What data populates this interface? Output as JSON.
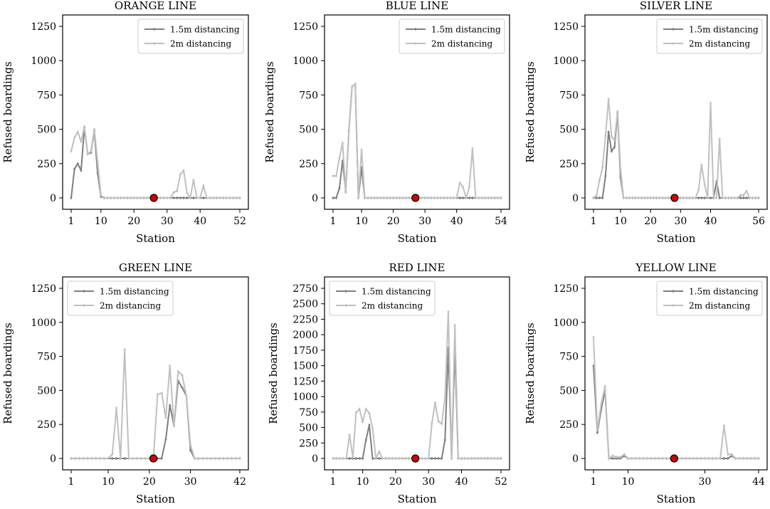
{
  "figure": {
    "colors": {
      "s15": "#7f7f7f",
      "s2": "#c0c0c0",
      "marker": "#d40000",
      "axis": "#000000"
    },
    "legend_placement": "upper-right"
  },
  "chart_data": [
    {
      "type": "line",
      "title": "ORANGE LINE",
      "xlabel": "Station",
      "ylabel": "Refused boardings",
      "ylim": [
        0,
        1250
      ],
      "yticks": [
        0,
        250,
        500,
        750,
        1000,
        1250
      ],
      "xlim": [
        1,
        52
      ],
      "xticks": [
        1,
        10,
        20,
        30,
        40,
        52
      ],
      "grid": false,
      "legend": "upper-right",
      "marker_station": 26,
      "series": [
        {
          "name": "1.5m distancing",
          "color": "#7f7f7f",
          "values": [
            0,
            210,
            250,
            200,
            510,
            320,
            330,
            490,
            180,
            10,
            0,
            0,
            0,
            0,
            0,
            0,
            0,
            0,
            0,
            0,
            0,
            0,
            0,
            0,
            0,
            0,
            0,
            0,
            0,
            0,
            0,
            0,
            0,
            0,
            0,
            0,
            0,
            0,
            0,
            0,
            0,
            0,
            0,
            0,
            0,
            0,
            0,
            0,
            0,
            0,
            0,
            0
          ]
        },
        {
          "name": "2m distancing",
          "color": "#c0c0c0",
          "values": [
            340,
            440,
            480,
            410,
            520,
            320,
            340,
            500,
            260,
            20,
            0,
            0,
            0,
            0,
            0,
            0,
            0,
            0,
            0,
            0,
            0,
            0,
            0,
            0,
            0,
            0,
            0,
            0,
            0,
            0,
            0,
            40,
            50,
            170,
            200,
            40,
            0,
            130,
            0,
            0,
            90,
            0,
            0,
            0,
            0,
            0,
            0,
            0,
            0,
            0,
            0,
            0
          ]
        }
      ]
    },
    {
      "type": "line",
      "title": "BLUE LINE",
      "xlabel": "Station",
      "ylabel": "Refused boardings",
      "ylim": [
        0,
        1250
      ],
      "yticks": [
        0,
        250,
        500,
        750,
        1000,
        1250
      ],
      "xlim": [
        1,
        54
      ],
      "xticks": [
        1,
        10,
        20,
        30,
        40,
        54
      ],
      "grid": false,
      "legend": "upper-right",
      "marker_station": 27,
      "series": [
        {
          "name": "1.5m distancing",
          "color": "#7f7f7f",
          "values": [
            0,
            0,
            70,
            270,
            50,
            490,
            810,
            830,
            0,
            220,
            0,
            0,
            0,
            0,
            0,
            0,
            0,
            0,
            0,
            0,
            0,
            0,
            0,
            0,
            0,
            0,
            0,
            0,
            0,
            0,
            0,
            0,
            0,
            0,
            0,
            0,
            0,
            0,
            0,
            0,
            0,
            0,
            0,
            0,
            0,
            0,
            0,
            0,
            0,
            0,
            0,
            0,
            0,
            0
          ]
        },
        {
          "name": "2m distancing",
          "color": "#c0c0c0",
          "values": [
            160,
            160,
            290,
            400,
            40,
            490,
            810,
            830,
            0,
            350,
            0,
            0,
            0,
            0,
            0,
            0,
            0,
            0,
            0,
            0,
            0,
            0,
            0,
            0,
            0,
            0,
            0,
            0,
            0,
            0,
            0,
            0,
            0,
            0,
            0,
            0,
            0,
            0,
            0,
            0,
            110,
            80,
            0,
            80,
            360,
            0,
            0,
            0,
            0,
            0,
            0,
            0,
            0,
            0
          ]
        }
      ]
    },
    {
      "type": "line",
      "title": "SILVER LINE",
      "xlabel": "Station",
      "ylabel": "Refused boardings",
      "ylim": [
        0,
        1250
      ],
      "yticks": [
        0,
        250,
        500,
        750,
        1000,
        1250
      ],
      "xlim": [
        1,
        56
      ],
      "xticks": [
        1,
        10,
        20,
        30,
        40,
        56
      ],
      "grid": false,
      "legend": "upper-right",
      "marker_station": 28,
      "series": [
        {
          "name": "1.5m distancing",
          "color": "#7f7f7f",
          "values": [
            0,
            0,
            0,
            0,
            160,
            480,
            340,
            370,
            620,
            150,
            0,
            0,
            0,
            0,
            0,
            0,
            0,
            0,
            0,
            0,
            0,
            0,
            0,
            0,
            0,
            0,
            0,
            0,
            0,
            0,
            0,
            0,
            0,
            0,
            0,
            0,
            0,
            0,
            0,
            0,
            0,
            120,
            0,
            0,
            0,
            0,
            0,
            0,
            0,
            0,
            0,
            0,
            0,
            0,
            0,
            0
          ]
        },
        {
          "name": "2m distancing",
          "color": "#c0c0c0",
          "values": [
            0,
            20,
            130,
            220,
            450,
            720,
            450,
            420,
            630,
            210,
            0,
            0,
            0,
            0,
            0,
            0,
            0,
            0,
            0,
            0,
            0,
            0,
            0,
            0,
            0,
            0,
            0,
            0,
            0,
            0,
            0,
            0,
            0,
            0,
            0,
            60,
            240,
            100,
            0,
            690,
            0,
            0,
            430,
            0,
            0,
            0,
            0,
            0,
            0,
            20,
            20,
            50,
            0,
            0,
            0,
            0
          ]
        }
      ]
    },
    {
      "type": "line",
      "title": "GREEN LINE",
      "xlabel": "Station",
      "ylabel": "Refused boardings",
      "ylim": [
        0,
        1250
      ],
      "yticks": [
        0,
        250,
        500,
        750,
        1000,
        1250
      ],
      "xlim": [
        1,
        42
      ],
      "xticks": [
        1,
        10,
        20,
        30,
        42
      ],
      "grid": false,
      "legend": "upper-left",
      "marker_station": 21,
      "series": [
        {
          "name": "1.5m distancing",
          "color": "#7f7f7f",
          "values": [
            0,
            0,
            0,
            0,
            0,
            0,
            0,
            0,
            0,
            0,
            0,
            0,
            0,
            0,
            0,
            0,
            0,
            0,
            0,
            0,
            0,
            0,
            0,
            140,
            390,
            240,
            570,
            520,
            460,
            60,
            0,
            0,
            0,
            0,
            0,
            0,
            0,
            0,
            0,
            0,
            0,
            0
          ]
        },
        {
          "name": "2m distancing",
          "color": "#c0c0c0",
          "values": [
            0,
            0,
            0,
            0,
            0,
            0,
            0,
            0,
            0,
            0,
            30,
            370,
            0,
            800,
            0,
            0,
            0,
            0,
            0,
            0,
            0,
            470,
            480,
            300,
            680,
            240,
            640,
            610,
            460,
            100,
            0,
            0,
            0,
            0,
            0,
            0,
            0,
            0,
            0,
            0,
            0,
            0
          ]
        }
      ]
    },
    {
      "type": "line",
      "title": "RED LINE",
      "xlabel": "Station",
      "ylabel": "Refused boardings",
      "ylim": [
        0,
        2750
      ],
      "yticks": [
        0,
        250,
        500,
        750,
        1000,
        1250,
        1500,
        1750,
        2000,
        2250,
        2500,
        2750
      ],
      "xlim": [
        1,
        52
      ],
      "xticks": [
        1,
        10,
        20,
        30,
        40,
        52
      ],
      "grid": false,
      "legend": "upper-left",
      "marker_station": 26,
      "series": [
        {
          "name": "1.5m distancing",
          "color": "#7f7f7f",
          "values": [
            0,
            0,
            0,
            0,
            0,
            0,
            0,
            0,
            0,
            0,
            300,
            540,
            0,
            0,
            0,
            0,
            0,
            0,
            0,
            0,
            0,
            0,
            0,
            0,
            0,
            0,
            0,
            0,
            0,
            0,
            0,
            0,
            0,
            0,
            300,
            1780,
            0,
            1780,
            0,
            0,
            0,
            0,
            0,
            0,
            0,
            0,
            0,
            0,
            0,
            0,
            0,
            0
          ]
        },
        {
          "name": "2m distancing",
          "color": "#c0c0c0",
          "values": [
            0,
            0,
            0,
            0,
            0,
            380,
            20,
            740,
            800,
            590,
            800,
            730,
            490,
            0,
            110,
            0,
            0,
            0,
            0,
            0,
            0,
            0,
            0,
            0,
            0,
            0,
            0,
            0,
            0,
            0,
            560,
            900,
            600,
            560,
            990,
            2370,
            0,
            2150,
            0,
            0,
            0,
            0,
            0,
            0,
            0,
            0,
            0,
            0,
            0,
            0,
            0,
            0
          ]
        }
      ]
    },
    {
      "type": "line",
      "title": "YELLOW LINE",
      "xlabel": "Station",
      "ylabel": "Refused boardings",
      "ylim": [
        0,
        1250
      ],
      "yticks": [
        0,
        250,
        500,
        750,
        1000,
        1250
      ],
      "xlim": [
        1,
        44
      ],
      "xticks": [
        1,
        10,
        30,
        44
      ],
      "grid": false,
      "legend": "upper-right",
      "marker_station": 22,
      "series": [
        {
          "name": "1.5m distancing",
          "color": "#7f7f7f",
          "values": [
            680,
            190,
            360,
            500,
            0,
            0,
            0,
            0,
            20,
            0,
            0,
            0,
            0,
            0,
            0,
            0,
            0,
            0,
            0,
            0,
            0,
            0,
            0,
            0,
            0,
            0,
            0,
            0,
            0,
            0,
            0,
            0,
            0,
            0,
            0,
            0,
            20,
            0,
            0,
            0,
            0,
            0,
            0,
            0
          ]
        },
        {
          "name": "2m distancing",
          "color": "#c0c0c0",
          "values": [
            890,
            210,
            400,
            530,
            0,
            20,
            10,
            10,
            30,
            0,
            0,
            0,
            0,
            0,
            0,
            0,
            0,
            0,
            0,
            0,
            0,
            0,
            0,
            0,
            0,
            0,
            0,
            0,
            0,
            0,
            0,
            0,
            0,
            0,
            240,
            30,
            30,
            0,
            0,
            0,
            0,
            0,
            0,
            0
          ]
        }
      ]
    }
  ]
}
